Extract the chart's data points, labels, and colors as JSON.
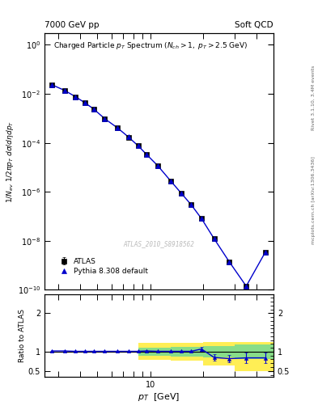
{
  "top_left_label": "7000 GeV pp",
  "top_right_label": "Soft QCD",
  "right_label_top": "Rivet 3.1.10, 3.4M events",
  "right_label_bottom": "mcplots.cern.ch [arXiv:1306.3436]",
  "watermark": "ATLAS_2010_S8918562",
  "xlabel": "p_{T}  [GeV]",
  "ylabel_bottom": "Ratio to ATLAS",
  "xlim": [
    2.5,
    50
  ],
  "ylim_top_lo": 1e-10,
  "ylim_top_hi": 3.0,
  "ylim_bottom_lo": 0.35,
  "ylim_bottom_hi": 2.5,
  "atlas_pt": [
    2.75,
    3.25,
    3.75,
    4.25,
    4.75,
    5.5,
    6.5,
    7.5,
    8.5,
    9.5,
    11.0,
    13.0,
    15.0,
    17.0,
    19.5,
    23.0,
    28.0,
    35.0,
    45.0
  ],
  "atlas_y": [
    0.023,
    0.0135,
    0.0075,
    0.0042,
    0.0024,
    0.00095,
    0.0004,
    0.00017,
    7.5e-05,
    3.3e-05,
    1.15e-05,
    2.8e-06,
    8.5e-07,
    3e-07,
    8e-08,
    1.2e-08,
    1.4e-09,
    1.4e-10,
    3.5e-09
  ],
  "atlas_yerr": [
    0.0003,
    0.0002,
    0.0001,
    5e-05,
    3e-05,
    1e-05,
    4e-06,
    2e-06,
    8e-07,
    4e-07,
    1.5e-07,
    4e-08,
    1.5e-08,
    5e-09,
    2e-09,
    4e-10,
    6e-11,
    1e-11,
    5e-10
  ],
  "pythia_pt": [
    2.75,
    3.25,
    3.75,
    4.25,
    4.75,
    5.5,
    6.5,
    7.5,
    8.5,
    9.5,
    11.0,
    13.0,
    15.0,
    17.0,
    19.5,
    23.0,
    28.0,
    35.0,
    45.0
  ],
  "pythia_y": [
    0.0235,
    0.0138,
    0.0076,
    0.00425,
    0.00242,
    0.00096,
    0.000405,
    0.000172,
    7.6e-05,
    3.35e-05,
    1.16e-05,
    2.82e-06,
    8.55e-07,
    3.02e-07,
    8.05e-08,
    1.21e-08,
    1.41e-09,
    1.41e-10,
    3.5e-09
  ],
  "ratio_pt": [
    2.75,
    3.25,
    3.75,
    4.25,
    4.75,
    5.5,
    6.5,
    7.5,
    8.5,
    9.5,
    11.0,
    13.0,
    15.0,
    17.0,
    19.5,
    23.0,
    28.0,
    35.0,
    45.0
  ],
  "ratio_y": [
    1.02,
    1.02,
    1.01,
    1.01,
    1.01,
    1.01,
    1.01,
    1.01,
    1.01,
    1.02,
    1.01,
    1.01,
    1.01,
    1.01,
    1.07,
    0.85,
    0.82,
    0.84,
    0.84
  ],
  "ratio_yerr": [
    0.01,
    0.01,
    0.01,
    0.01,
    0.01,
    0.01,
    0.01,
    0.01,
    0.01,
    0.01,
    0.01,
    0.01,
    0.01,
    0.01,
    0.06,
    0.08,
    0.1,
    0.14,
    0.14
  ],
  "band_x_edges": [
    8.5,
    13.0,
    20.0,
    30.0,
    100.0
  ],
  "band_green_lo": [
    0.9,
    0.88,
    0.85,
    0.82
  ],
  "band_green_hi": [
    1.1,
    1.12,
    1.15,
    1.18
  ],
  "band_yellow_lo": [
    0.78,
    0.76,
    0.65,
    0.5
  ],
  "band_yellow_hi": [
    1.22,
    1.24,
    1.25,
    1.25
  ],
  "atlas_color": "#000000",
  "pythia_color": "#0000cc",
  "atlas_marker": "s",
  "pythia_marker": "^",
  "green_color": "#88dd88",
  "yellow_color": "#ffee55",
  "atlas_markersize": 4,
  "pythia_markersize": 4,
  "legend_atlas": "ATLAS",
  "legend_pythia": "Pythia 8.308 default"
}
